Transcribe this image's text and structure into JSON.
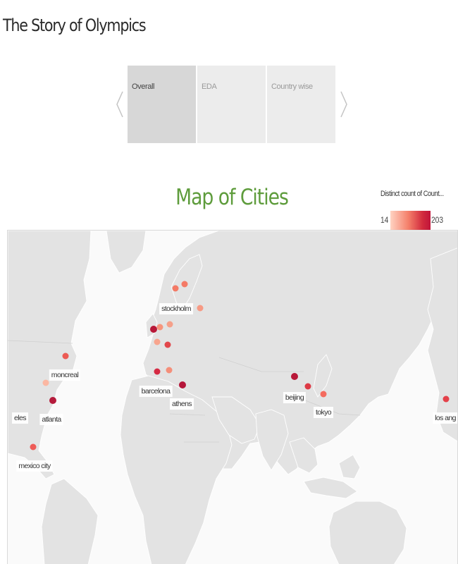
{
  "story": {
    "title": "The Story of Olympics",
    "tabs": [
      {
        "label": "Overall",
        "active": true
      },
      {
        "label": "EDA",
        "active": false
      },
      {
        "label": "Country wise",
        "active": false
      }
    ]
  },
  "map": {
    "title": "Map of Cities",
    "title_color": "#5e9c3c",
    "legend": {
      "title": "Distinct count of Count...",
      "min": "14",
      "max": "203",
      "color_low": "#ffd3c2",
      "color_high": "#c0143a"
    },
    "cities": [
      {
        "label": "stockholm"
      },
      {
        "label": "moncreal"
      },
      {
        "label": "atlanta"
      },
      {
        "label": "barcelona"
      },
      {
        "label": "athens"
      },
      {
        "label": "beijing"
      },
      {
        "label": "tokyo"
      },
      {
        "label": "los ang"
      },
      {
        "label": "eles"
      },
      {
        "label": "mexico city"
      }
    ]
  }
}
